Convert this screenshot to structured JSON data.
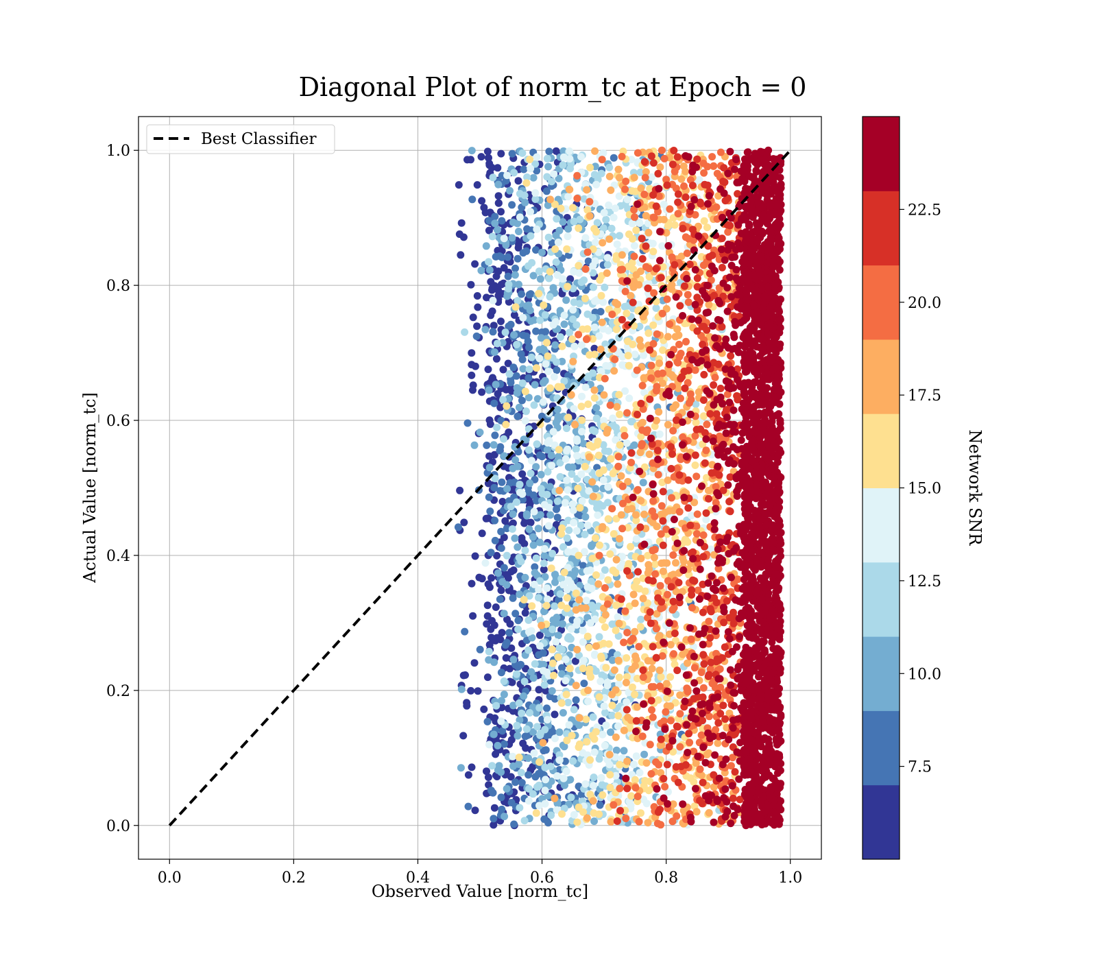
{
  "chart_data": {
    "type": "scatter",
    "title": "Diagonal Plot of norm_tc at Epoch = 0",
    "xlabel": "Observed Value [norm_tc]",
    "ylabel": "Actual Value [norm_tc]",
    "xlim": [
      -0.05,
      1.05
    ],
    "ylim": [
      -0.05,
      1.05
    ],
    "x_ticks": [
      "0.0",
      "0.2",
      "0.4",
      "0.6",
      "0.8",
      "1.0"
    ],
    "y_ticks": [
      "0.0",
      "0.2",
      "0.4",
      "0.6",
      "0.8",
      "1.0"
    ],
    "grid": true,
    "legend": {
      "placement": "upper-left",
      "entries": [
        {
          "label": "Best Classifier",
          "style": "dashed-black-line"
        }
      ]
    },
    "reference_line": {
      "name": "Best Classifier",
      "x": [
        0,
        1
      ],
      "y": [
        0,
        1
      ],
      "color": "#000000"
    },
    "scatter_summary": {
      "x_range": [
        0.46,
        0.99
      ],
      "y_range": [
        0.0,
        1.0
      ],
      "color_trend": "Network SNR increases with observed value; low SNR (dark blue) near x≈0.5, high SNR (dark red) dense band at x≈0.92–0.98"
    },
    "colorbar": {
      "label": "Network SNR",
      "range": [
        5.0,
        25.0
      ],
      "tick_labels": [
        "7.5",
        "10.0",
        "12.5",
        "15.0",
        "17.5",
        "20.0",
        "22.5"
      ],
      "tick_values": [
        7.5,
        10.0,
        12.5,
        15.0,
        17.5,
        20.0,
        22.5
      ],
      "colors": [
        "#313695",
        "#4575b4",
        "#74add1",
        "#abd9e9",
        "#e0f3f8",
        "#fee090",
        "#fdae61",
        "#f46d43",
        "#d73027",
        "#a50026"
      ]
    }
  }
}
